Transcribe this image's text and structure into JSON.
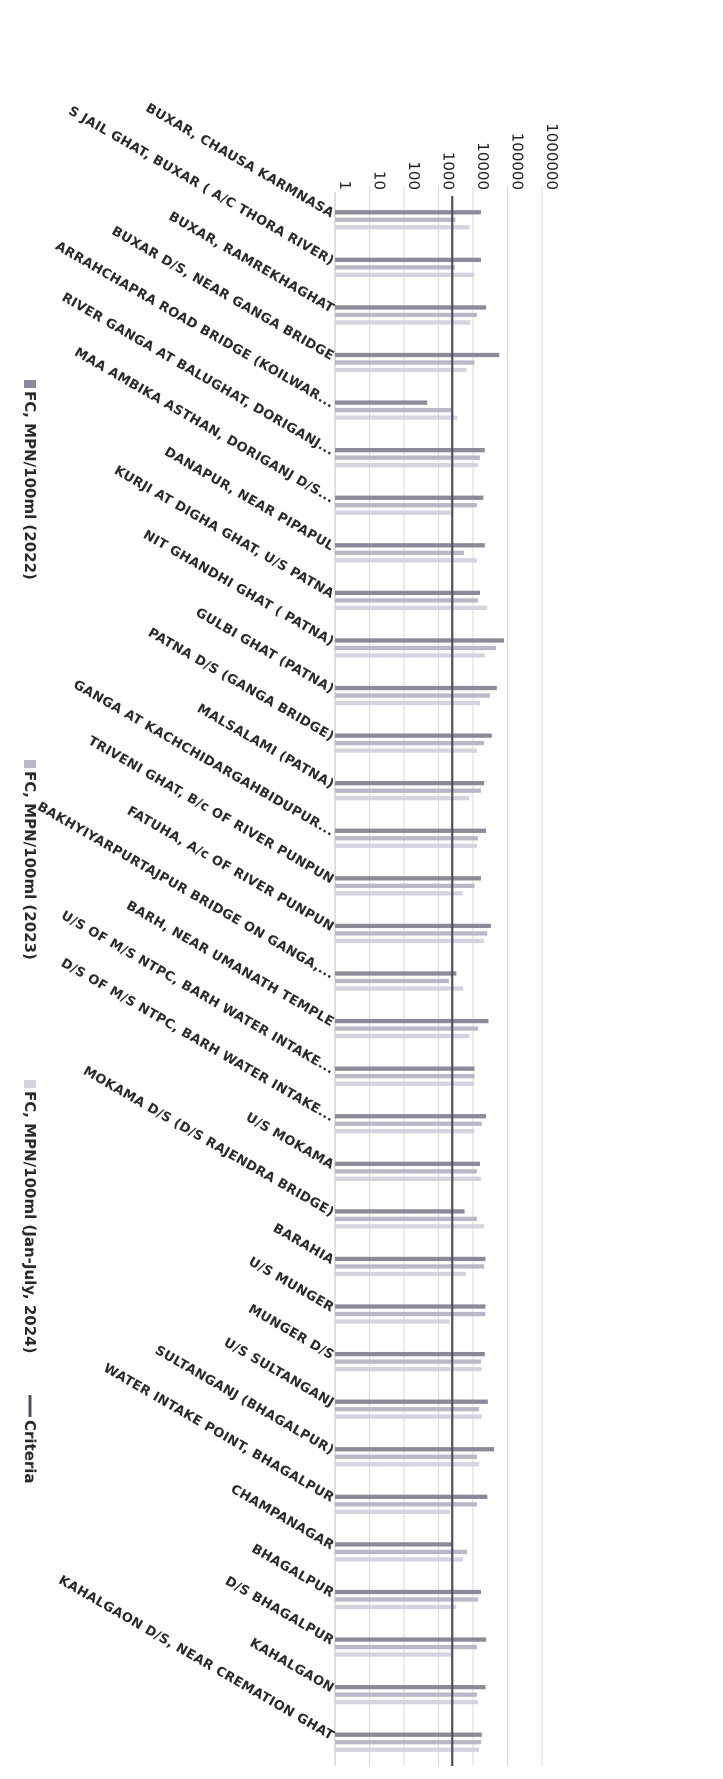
{
  "chart_data": {
    "type": "bar",
    "orientation": "horizontal-bars, chart rotated 90 degrees clockwise",
    "scale": "log10",
    "ylim": [
      1,
      1000000
    ],
    "tick_labels": [
      "1",
      "10",
      "100",
      "1000",
      "10000",
      "100000",
      "1000000"
    ],
    "grid": true,
    "legend_position": "bottom",
    "categories": [
      "BUXAR, CHAUSA KARMNASA",
      "S JAIL GHAT, BUXAR ( A/C THORA RIVER)",
      "BUXAR, RAMREKHAGHAT",
      "BUXAR D/S, NEAR GANGA BRIDGE",
      "ARRAHCHAPRA ROAD BRIDGE (KOILWAR...",
      "RIVER GANGA AT BALUGHAT, DORIGANJ...",
      "MAA AMBIKA ASTHAN, DORIGANJ D/S...",
      "DANAPUR, NEAR PIPAPUL",
      "KURJI AT DIGHA GHAT, U/S PATNA",
      "NIT GHANDHI GHAT ( PATNA)",
      "GULBI GHAT (PATNA)",
      "PATNA D/S (GANGA BRIDGE)",
      "MALSALAMI (PATNA)",
      "GANGA AT KACHCHIDARGAHBIDUPUR...",
      "TRIVENI GHAT, B/c OF RIVER PUNPUN",
      "FATUHA, A/c OF RIVER PUNPUN",
      "BAKHYIYARPURTAJPUR BRIDGE ON GANGA,...",
      "BARH, NEAR UMANATH TEMPLE",
      "U/S OF M/S NTPC, BARH WATER INTAKE...",
      "D/S OF M/S NTPC, BARH WATER INTAKE...",
      "U/S MOKAMA",
      "MOKAMA D/S (D/S RAJENDRA BRIDGE)",
      "BARAHIA",
      "U/S MUNGER",
      "MUNGER D/S",
      "U/S SULTANGANJ",
      "SULTANGANJ (BHAGALPUR)",
      "WATER INTAKE POINT, BHAGALPUR",
      "CHAMPANAGAR",
      "BHAGALPUR",
      "D/S BHAGALPUR",
      "KAHALGAON",
      "KAHALGAON D/S, NEAR CREMATION GHAT"
    ],
    "series": [
      {
        "name": "FC, MPN/100ml (2022)",
        "color": "#8a8a98",
        "values": [
          17000,
          17000,
          24000,
          58000,
          470,
          22000,
          20000,
          22000,
          16000,
          79000,
          49000,
          35000,
          21000,
          24000,
          17000,
          33000,
          3300,
          28000,
          11000,
          24000,
          16000,
          5700,
          23000,
          23000,
          22000,
          27000,
          41000,
          26000,
          2500,
          17000,
          24000,
          23000,
          18000
        ]
      },
      {
        "name": "FC, MPN/100ml (2023)",
        "color": "#b8b8c6",
        "values": [
          3100,
          3000,
          13000,
          11000,
          2500,
          16000,
          13000,
          5500,
          14000,
          46000,
          31000,
          21000,
          17000,
          14000,
          11000,
          26000,
          2000,
          14000,
          11000,
          18000,
          13000,
          13000,
          21000,
          23000,
          17000,
          15000,
          13000,
          13000,
          6700,
          14000,
          13000,
          13000,
          17000
        ]
      },
      {
        "name": "FC, MPN/100ml (Jan-July, 2024)",
        "color": "#d4d4e0",
        "values": [
          8000,
          11000,
          8500,
          6500,
          3500,
          14000,
          2300,
          13000,
          26000,
          22000,
          16000,
          13000,
          7800,
          13000,
          5000,
          21000,
          5200,
          7900,
          11000,
          11000,
          17000,
          21000,
          6300,
          2100,
          18000,
          18000,
          15000,
          2200,
          5200,
          3300,
          2700,
          14000,
          15000
        ]
      },
      {
        "name": "Criteria",
        "color": "#50505e",
        "type": "line",
        "values": [
          2500,
          2500,
          2500,
          2500,
          2500,
          2500,
          2500,
          2500,
          2500,
          2500,
          2500,
          2500,
          2500,
          2500,
          2500,
          2500,
          2500,
          2500,
          2500,
          2500,
          2500,
          2500,
          2500,
          2500,
          2500,
          2500,
          2500,
          2500,
          2500,
          2500,
          2500,
          2500,
          2500
        ]
      }
    ]
  }
}
